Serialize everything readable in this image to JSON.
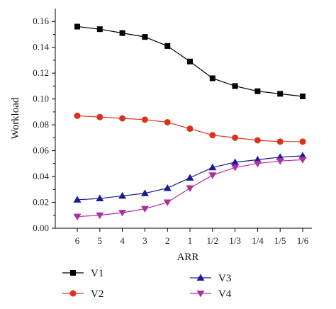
{
  "chart_data": {
    "type": "line",
    "xlabel": "ARR",
    "ylabel": "Workload",
    "categories": [
      "6",
      "5",
      "4",
      "3",
      "2",
      "1",
      "1/2",
      "1/3",
      "1/4",
      "1/5",
      "1/6"
    ],
    "ylim": [
      0,
      0.17
    ],
    "yticks": [
      "0.00",
      "0.02",
      "0.04",
      "0.06",
      "0.08",
      "0.10",
      "0.12",
      "0.14",
      "0.16"
    ],
    "grid": false,
    "legend_position": "bottom",
    "series": [
      {
        "name": "V1",
        "color": "#000000",
        "marker": "square",
        "values": [
          0.156,
          0.154,
          0.151,
          0.148,
          0.141,
          0.129,
          0.116,
          0.11,
          0.106,
          0.104,
          0.102
        ]
      },
      {
        "name": "V2",
        "color": "#d9331a",
        "marker": "circle",
        "values": [
          0.087,
          0.086,
          0.085,
          0.084,
          0.082,
          0.077,
          0.072,
          0.07,
          0.068,
          0.067,
          0.067
        ]
      },
      {
        "name": "V3",
        "color": "#1a1a99",
        "marker": "triangle-up",
        "values": [
          0.022,
          0.023,
          0.025,
          0.027,
          0.031,
          0.039,
          0.047,
          0.051,
          0.053,
          0.055,
          0.056
        ]
      },
      {
        "name": "V4",
        "color": "#b0309e",
        "marker": "triangle-down",
        "values": [
          0.009,
          0.01,
          0.012,
          0.015,
          0.02,
          0.031,
          0.041,
          0.047,
          0.05,
          0.052,
          0.053
        ]
      }
    ]
  }
}
